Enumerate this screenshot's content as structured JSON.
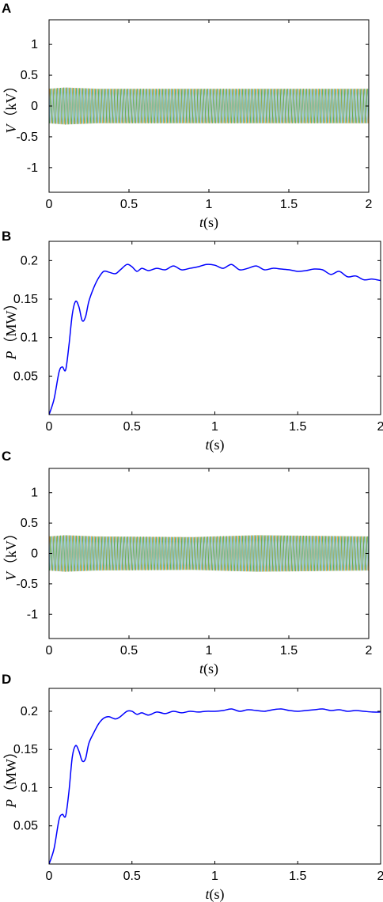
{
  "chart_data": [
    {
      "panel": "A",
      "type": "line",
      "xlabel_var": "t",
      "xlabel_unit": "(s)",
      "ylabel_var": "V",
      "ylabel_unit": "（kV）",
      "xlim": [
        0,
        2
      ],
      "ylim": [
        -1.4,
        1.4
      ],
      "xticks": [
        0,
        0.5,
        1,
        1.5,
        2
      ],
      "xtick_labels": [
        "0",
        "0.5",
        "1",
        "1.5",
        "2"
      ],
      "yticks": [
        1,
        0.5,
        0,
        -0.5,
        -1
      ],
      "ytick_labels": [
        "1",
        "0.5",
        "0",
        "-0.5",
        "-1"
      ],
      "signal": {
        "kind": "three-phase",
        "amplitude": 0.28,
        "frequency_hz": 50,
        "amplitude_envelope": [
          [
            0,
            0.28
          ],
          [
            0.1,
            0.3
          ],
          [
            0.3,
            0.28
          ],
          [
            2,
            0.28
          ]
        ]
      },
      "series_colors": [
        "#e8a23a",
        "#4aa84a",
        "#8fc4e8"
      ]
    },
    {
      "panel": "B",
      "type": "line",
      "xlabel_var": "t",
      "xlabel_unit": "(s)",
      "ylabel_var": "P",
      "ylabel_unit": "（MW）",
      "xlim": [
        0,
        2
      ],
      "ylim": [
        0,
        0.225
      ],
      "xticks": [
        0,
        0.5,
        1,
        1.5,
        2
      ],
      "xtick_labels": [
        "0",
        "0.5",
        "1",
        "1.5",
        "2"
      ],
      "yticks": [
        0.2,
        0.15,
        0.1,
        0.05
      ],
      "ytick_labels": [
        "0.2",
        "0.15",
        "0.1",
        "0.05"
      ],
      "series": [
        {
          "color": "#0000ff",
          "x": [
            0,
            0.03,
            0.06,
            0.08,
            0.1,
            0.12,
            0.14,
            0.16,
            0.18,
            0.2,
            0.22,
            0.24,
            0.27,
            0.3,
            0.33,
            0.36,
            0.4,
            0.43,
            0.47,
            0.5,
            0.53,
            0.56,
            0.6,
            0.65,
            0.7,
            0.75,
            0.8,
            0.85,
            0.9,
            0.95,
            1.0,
            1.05,
            1.1,
            1.15,
            1.2,
            1.25,
            1.3,
            1.35,
            1.4,
            1.45,
            1.5,
            1.55,
            1.6,
            1.65,
            1.7,
            1.75,
            1.8,
            1.85,
            1.9,
            1.95,
            2.0
          ],
          "y": [
            0,
            0.02,
            0.055,
            0.062,
            0.058,
            0.09,
            0.13,
            0.147,
            0.14,
            0.122,
            0.127,
            0.147,
            0.165,
            0.178,
            0.186,
            0.185,
            0.183,
            0.188,
            0.195,
            0.192,
            0.186,
            0.19,
            0.187,
            0.19,
            0.188,
            0.193,
            0.188,
            0.19,
            0.192,
            0.195,
            0.194,
            0.19,
            0.195,
            0.188,
            0.19,
            0.193,
            0.188,
            0.19,
            0.189,
            0.188,
            0.186,
            0.187,
            0.189,
            0.188,
            0.182,
            0.186,
            0.179,
            0.18,
            0.175,
            0.176,
            0.174
          ]
        }
      ]
    },
    {
      "panel": "C",
      "type": "line",
      "xlabel_var": "t",
      "xlabel_unit": "(s)",
      "ylabel_var": "V",
      "ylabel_unit": "（kV）",
      "xlim": [
        0,
        2
      ],
      "ylim": [
        -1.4,
        1.4
      ],
      "xticks": [
        0,
        0.5,
        1,
        1.5,
        2
      ],
      "xtick_labels": [
        "0",
        "0.5",
        "1",
        "1.5",
        "2"
      ],
      "yticks": [
        1,
        0.5,
        0,
        -0.5,
        -1
      ],
      "ytick_labels": [
        "1",
        "0.5",
        "0",
        "-0.5",
        "-1"
      ],
      "signal": {
        "kind": "three-phase",
        "amplitude": 0.28,
        "frequency_hz": 50,
        "amplitude_envelope": [
          [
            0,
            0.28
          ],
          [
            0.1,
            0.3
          ],
          [
            0.3,
            0.28
          ],
          [
            0.9,
            0.27
          ],
          [
            1.3,
            0.3
          ],
          [
            2,
            0.28
          ]
        ]
      },
      "series_colors": [
        "#e8a23a",
        "#4aa84a",
        "#8fc4e8"
      ]
    },
    {
      "panel": "D",
      "type": "line",
      "xlabel_var": "t",
      "xlabel_unit": "(s)",
      "ylabel_var": "P",
      "ylabel_unit": "（MW）",
      "xlim": [
        0,
        2
      ],
      "ylim": [
        0,
        0.23
      ],
      "xticks": [
        0,
        0.5,
        1,
        1.5,
        2
      ],
      "xtick_labels": [
        "0",
        "0.5",
        "1",
        "1.5",
        "2"
      ],
      "yticks": [
        0.2,
        0.15,
        0.1,
        0.05
      ],
      "ytick_labels": [
        "0.2",
        "0.15",
        "0.1",
        "0.05"
      ],
      "series": [
        {
          "color": "#0000ff",
          "x": [
            0,
            0.03,
            0.06,
            0.08,
            0.1,
            0.12,
            0.14,
            0.16,
            0.18,
            0.2,
            0.22,
            0.24,
            0.27,
            0.3,
            0.33,
            0.36,
            0.4,
            0.43,
            0.47,
            0.5,
            0.53,
            0.56,
            0.6,
            0.65,
            0.7,
            0.75,
            0.8,
            0.85,
            0.9,
            0.95,
            1.0,
            1.05,
            1.1,
            1.15,
            1.2,
            1.25,
            1.3,
            1.35,
            1.4,
            1.45,
            1.5,
            1.55,
            1.6,
            1.65,
            1.7,
            1.75,
            1.8,
            1.85,
            1.9,
            1.95,
            2.0
          ],
          "y": [
            0,
            0.02,
            0.058,
            0.065,
            0.063,
            0.095,
            0.14,
            0.155,
            0.148,
            0.135,
            0.138,
            0.158,
            0.172,
            0.184,
            0.191,
            0.193,
            0.19,
            0.193,
            0.2,
            0.2,
            0.196,
            0.198,
            0.195,
            0.199,
            0.197,
            0.2,
            0.198,
            0.2,
            0.199,
            0.2,
            0.2,
            0.201,
            0.203,
            0.2,
            0.202,
            0.201,
            0.2,
            0.202,
            0.203,
            0.201,
            0.2,
            0.201,
            0.202,
            0.203,
            0.201,
            0.202,
            0.2,
            0.201,
            0.2,
            0.199,
            0.199
          ]
        }
      ]
    }
  ]
}
